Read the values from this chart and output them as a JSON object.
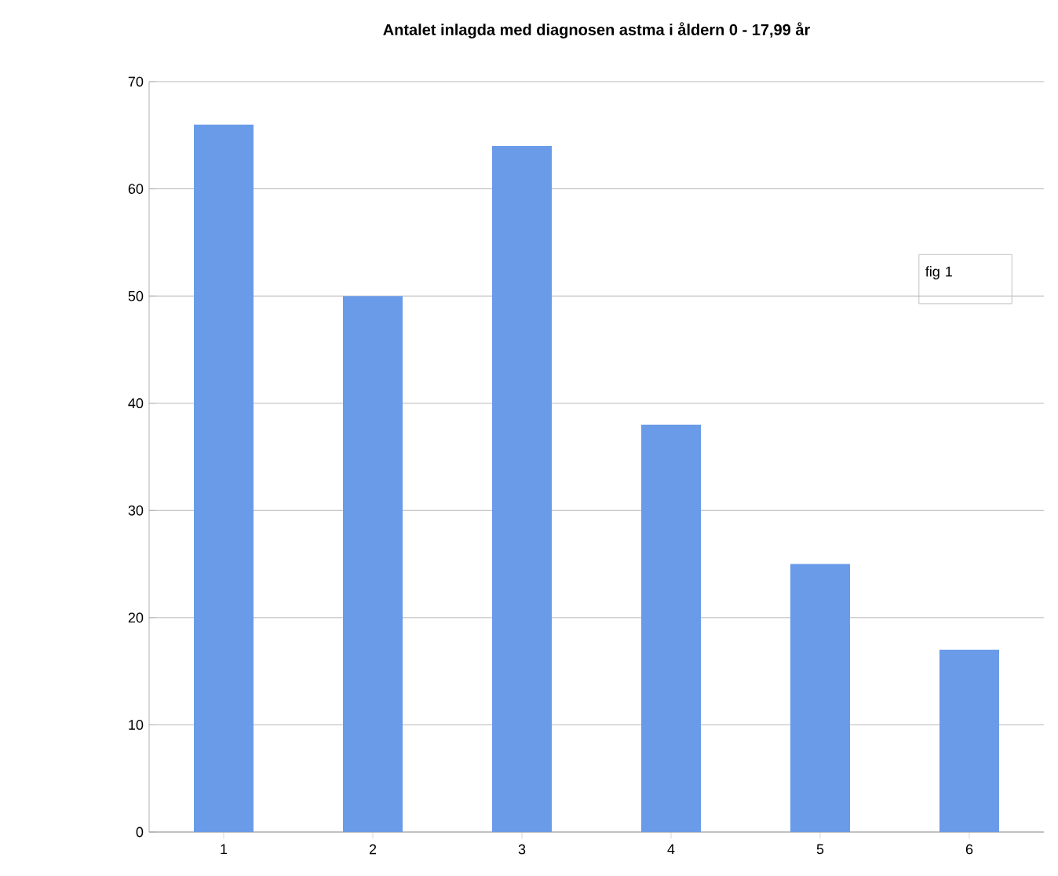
{
  "chart_data": {
    "type": "bar",
    "title": "Antalet inlagda med diagnosen astma i åldern  0 - 17,99 år",
    "categories": [
      "1",
      "2",
      "3",
      "4",
      "5",
      "6"
    ],
    "values": [
      66,
      50,
      64,
      38,
      25,
      17
    ],
    "color": "#6a9be8",
    "ylim": [
      0,
      70
    ],
    "yticks": [
      0,
      10,
      20,
      30,
      40,
      50,
      60,
      70
    ],
    "grid": "y",
    "annotations": [
      "fig 1"
    ]
  }
}
